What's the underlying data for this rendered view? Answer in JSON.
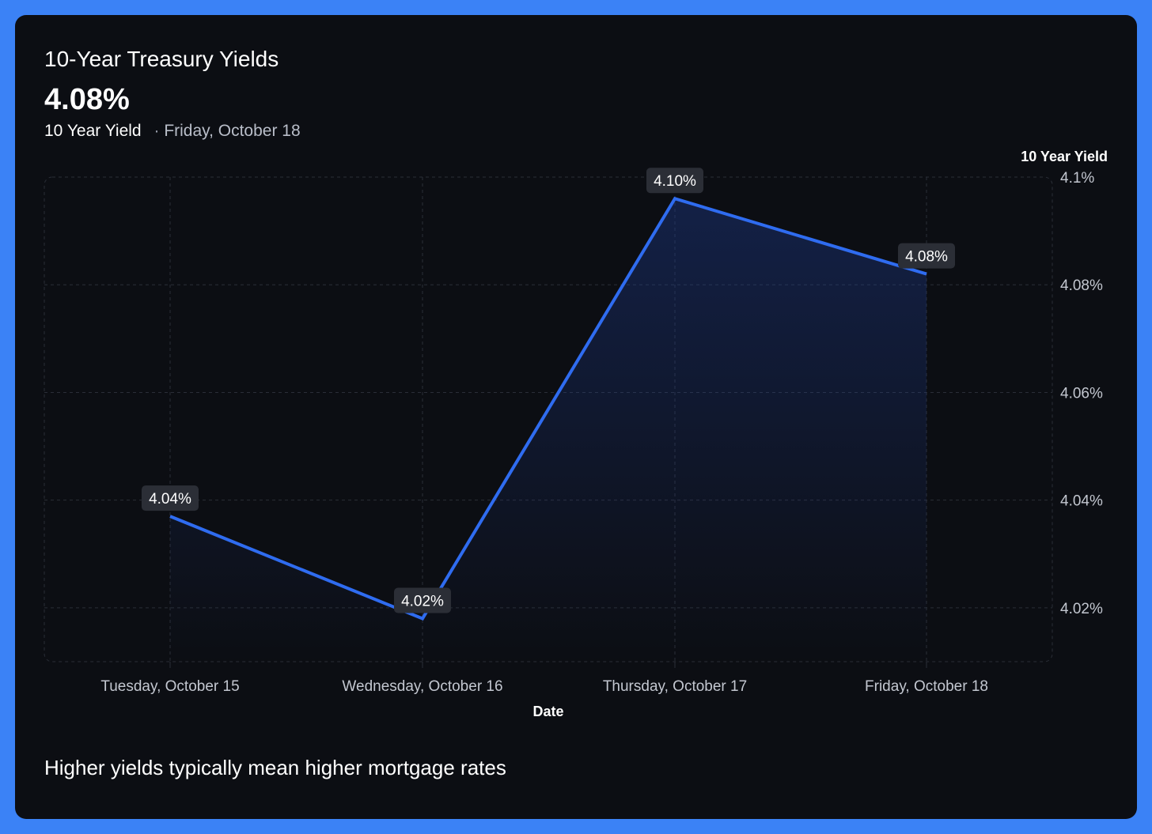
{
  "header": {
    "title": "10-Year Treasury Yields",
    "current_value": "4.08%",
    "metric_label": "10 Year Yield",
    "separator": "·",
    "date_label": "Friday, October 18"
  },
  "footer": {
    "note": "Higher yields typically mean higher mortgage rates"
  },
  "colors": {
    "frame": "#3b82f6",
    "background": "#0c0e13",
    "line": "#2f6cf0",
    "grid": "#2a2e37",
    "label_bg": "#2b2e36",
    "axis_text": "#c3c7d0"
  },
  "chart_data": {
    "type": "area",
    "categories": [
      "Tuesday, October 15",
      "Wednesday, October 16",
      "Thursday, October 17",
      "Friday, October 18"
    ],
    "series": [
      {
        "name": "10 Year Yield",
        "values": [
          4.037,
          4.018,
          4.096,
          4.082
        ]
      }
    ],
    "data_labels": [
      "4.04%",
      "4.02%",
      "4.10%",
      "4.08%"
    ],
    "xlabel": "Date",
    "ylabel": "10 Year Yield",
    "ylim": [
      4.01,
      4.1
    ],
    "y_ticks": [
      4.02,
      4.04,
      4.06,
      4.08,
      4.1
    ],
    "y_tick_labels": [
      "4.02%",
      "4.04%",
      "4.06%",
      "4.08%",
      "4.1%"
    ],
    "y_axis_side": "right",
    "grid": true
  }
}
